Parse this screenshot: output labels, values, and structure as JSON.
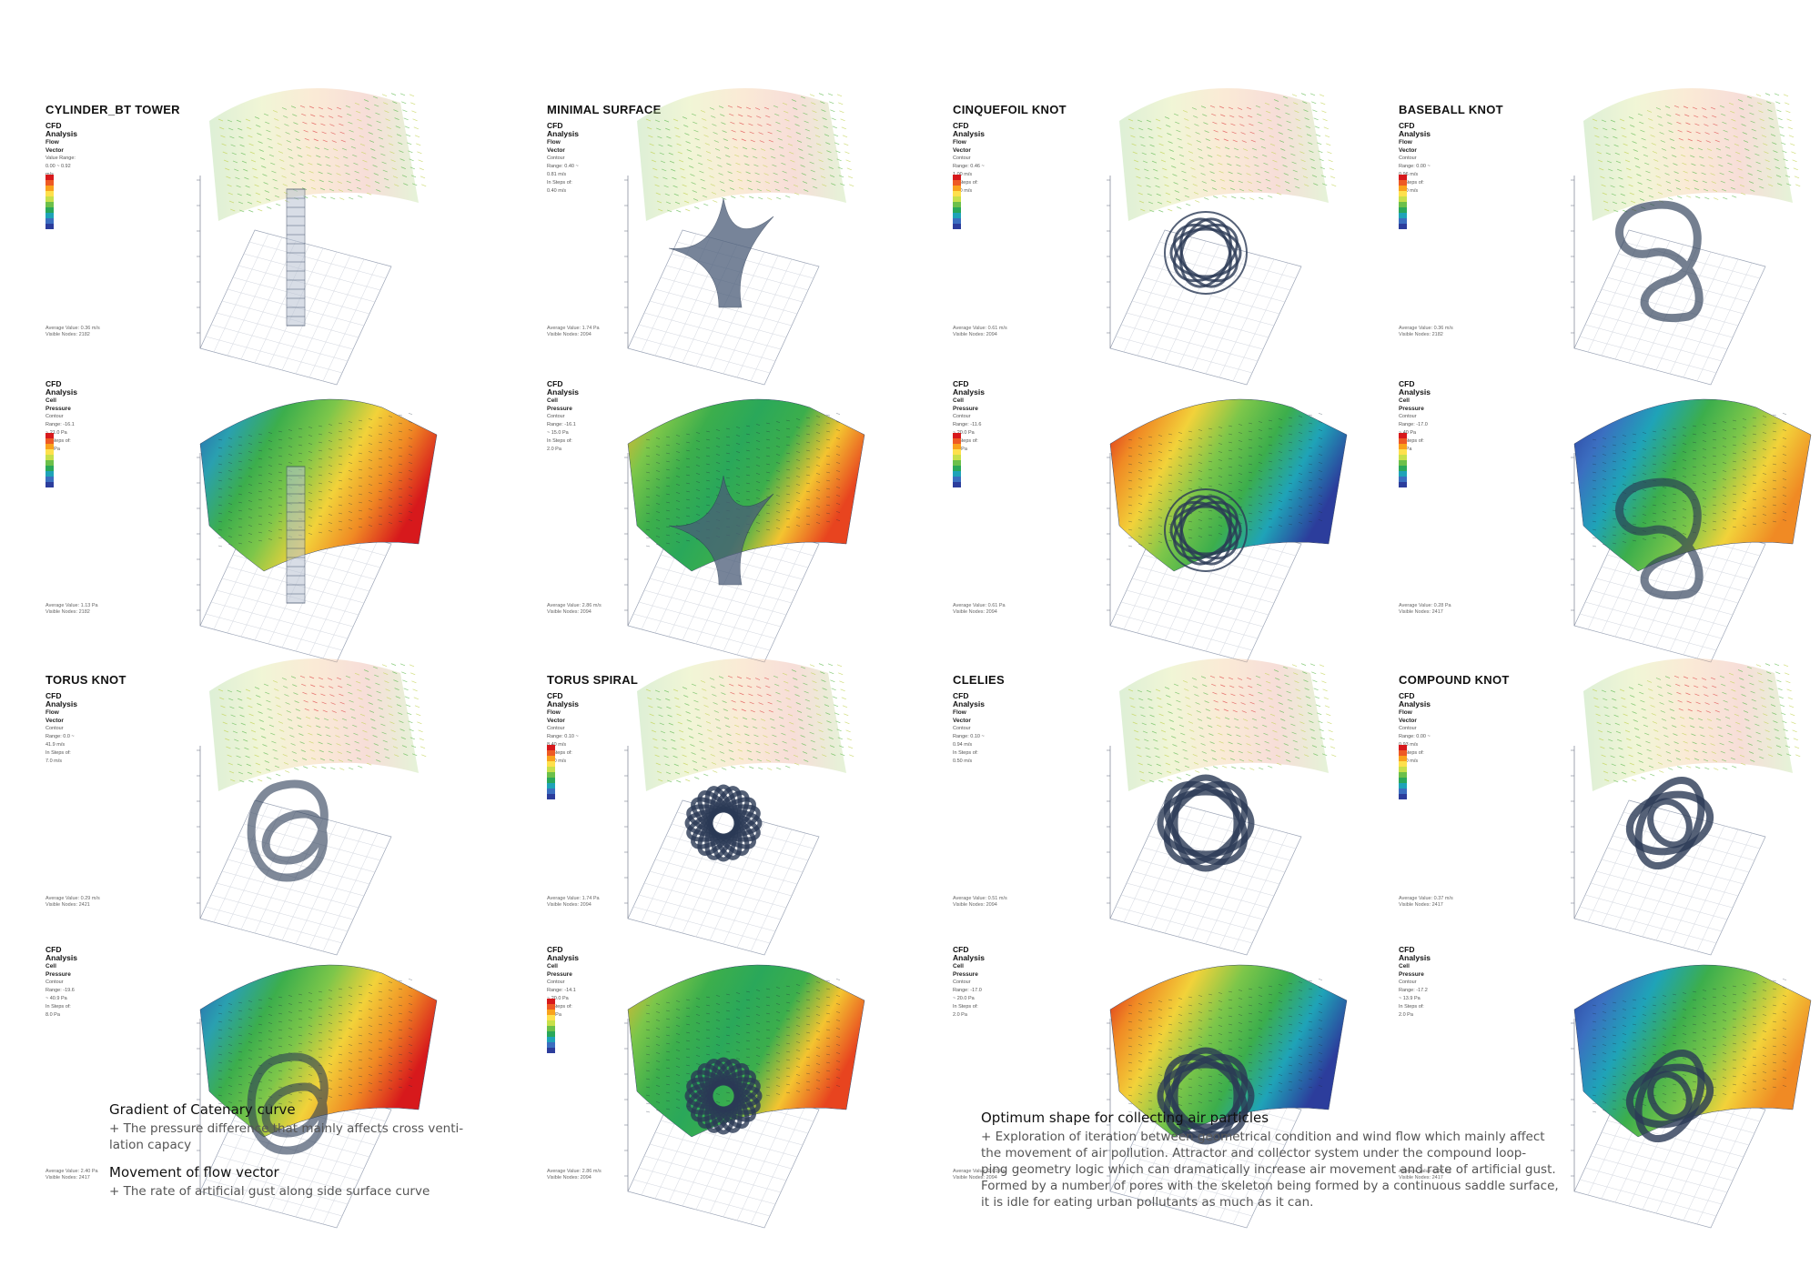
{
  "panels": [
    {
      "title": "CYLINDER_BT TOWER",
      "legend": {
        "title": "CFD Analysis",
        "sub": "Flow Vector",
        "l1": "Value Range: 0.00 ~ 0.92 m/s",
        "l2": "",
        "l3": ""
      },
      "stat": {
        "l1": "Average Value: 0.36 m/s",
        "l2": "Visible Nodes: 2182"
      }
    },
    {
      "title": "MINIMAL SURFACE",
      "legend": {
        "title": "CFD Analysis",
        "sub": "Flow Vector",
        "l1": "Contour Range: 0.40 ~ 0.81 m/s",
        "l2": "In Steps of: 0.40 m/s",
        "l3": ""
      },
      "stat": {
        "l1": "Average Value: 1.74 Pa",
        "l2": "Visible Nodes: 2094"
      }
    },
    {
      "title": "CINQUEFOIL KNOT",
      "legend": {
        "title": "CFD Analysis",
        "sub": "Flow Vector",
        "l1": "Contour Range: 0.46 ~ 1.00 m/s",
        "l2": "In Steps of: 0.40 m/s",
        "l3": ""
      },
      "stat": {
        "l1": "Average Value: 0.61 m/s",
        "l2": "Visible Nodes: 2094"
      }
    },
    {
      "title": "BASEBALL KNOT",
      "legend": {
        "title": "CFD Analysis",
        "sub": "Flow Vector",
        "l1": "Contour Range: 0.00 ~ 0.96 m/s",
        "l2": "In Steps of: 0.40 m/s",
        "l3": ""
      },
      "stat": {
        "l1": "Average Value: 0.36 m/s",
        "l2": "Visible Nodes: 2182"
      }
    },
    {
      "title": "",
      "legend": {
        "title": "CFD Analysis",
        "sub": "Cell Pressure",
        "l1": "Contour Range: -16.1 ~ 21.0 Pa",
        "l2": "In Steps of: 4.0 Pa",
        "l3": ""
      },
      "stat": {
        "l1": "Average Value: 1.13 Pa",
        "l2": "Visible Nodes: 2182"
      }
    },
    {
      "title": "",
      "legend": {
        "title": "CFD Analysis",
        "sub": "Cell Pressure",
        "l1": "Contour Range: -16.1 ~ 15.0 Pa",
        "l2": "In Steps of: 2.0 Pa",
        "l3": ""
      },
      "stat": {
        "l1": "Average Value: 2.86 m/s",
        "l2": "Visible Nodes: 2094"
      }
    },
    {
      "title": "",
      "legend": {
        "title": "CFD Analysis",
        "sub": "Cell Pressure",
        "l1": "Contour Range: -11.6 ~ 20.0 Pa",
        "l2": "In Steps of: 2.0 Pa",
        "l3": ""
      },
      "stat": {
        "l1": "Average Value: 0.61 Pa",
        "l2": "Visible Nodes: 2094"
      }
    },
    {
      "title": "",
      "legend": {
        "title": "CFD Analysis",
        "sub": "Cell Pressure",
        "l1": "Contour Range: -17.0 ~ 40 Pa",
        "l2": "In Steps of: 10 Pa",
        "l3": ""
      },
      "stat": {
        "l1": "Average Value: 0.28 Pa",
        "l2": "Visible Nodes: 2417"
      }
    },
    {
      "title": "TORUS KNOT",
      "legend": {
        "title": "CFD Analysis",
        "sub": "Flow Vector",
        "l1": "Contour Range: 0.0 ~ 41.9 m/s",
        "l2": "In Steps of: 7.0 m/s",
        "l3": ""
      },
      "stat": {
        "l1": "Average Value: 0.29 m/s",
        "l2": "Visible Nodes: 2421"
      }
    },
    {
      "title": "TORUS SPIRAL",
      "legend": {
        "title": "CFD Analysis",
        "sub": "Flow Vector",
        "l1": "Contour Range: 0.10 ~ 8.40 m/s",
        "l2": "In Steps of: 1.00 m/s",
        "l3": ""
      },
      "stat": {
        "l1": "Average Value: 1.74 Pa",
        "l2": "Visible Nodes: 2094"
      }
    },
    {
      "title": "CLELIES",
      "legend": {
        "title": "CFD Analysis",
        "sub": "Flow Vector",
        "l1": "Contour Range: 0.10 ~ 0.94 m/s",
        "l2": "In Steps of: 0.50 m/s",
        "l3": ""
      },
      "stat": {
        "l1": "Average Value: 0.51 m/s",
        "l2": "Visible Nodes: 2094"
      }
    },
    {
      "title": "COMPOUND KNOT",
      "legend": {
        "title": "CFD Analysis",
        "sub": "Flow Vector",
        "l1": "Contour Range: 0.00 ~ 0.93 m/s",
        "l2": "In Steps of: 0.40 m/s",
        "l3": ""
      },
      "stat": {
        "l1": "Average Value: 0.37 m/s",
        "l2": "Visible Nodes: 2417"
      }
    },
    {
      "title": "",
      "legend": {
        "title": "CFD Analysis",
        "sub": "Cell Pressure",
        "l1": "Contour Range: -19.6 ~ 40.9 Pa",
        "l2": "In Steps of: 8.0 Pa",
        "l3": ""
      },
      "stat": {
        "l1": "Average Value: 2.40 Pa",
        "l2": "Visible Nodes: 2417"
      }
    },
    {
      "title": "",
      "legend": {
        "title": "CFD Analysis",
        "sub": "Cell Pressure",
        "l1": "Contour Range: -14.1 ~ 20.0 Pa",
        "l2": "In Steps of: 4.0 Pa",
        "l3": ""
      },
      "stat": {
        "l1": "Average Value: 2.86 m/s",
        "l2": "Visible Nodes: 2094"
      }
    },
    {
      "title": "",
      "legend": {
        "title": "CFD Analysis",
        "sub": "Cell Pressure",
        "l1": "Contour Range: -17.0 ~ 20.0 Pa",
        "l2": "In Steps of: 2.0 Pa",
        "l3": ""
      },
      "stat": {
        "l1": "Average Value: 2.61 Pa",
        "l2": "Visible Nodes: 2094"
      }
    },
    {
      "title": "",
      "legend": {
        "title": "CFD Analysis",
        "sub": "Cell Pressure",
        "l1": "Contour Range: -17.2 ~ 13.9 Pa",
        "l2": "In Steps of: 2.0 Pa",
        "l3": ""
      },
      "stat": {
        "l1": "Average Value: 0.37 Pa",
        "l2": "Visible Nodes: 2417"
      }
    }
  ],
  "colorbar_colors": [
    "#d7191c",
    "#ee5a24",
    "#f9a21c",
    "#fee04c",
    "#c8e04a",
    "#6cc04a",
    "#2aa85a",
    "#1fa3b8",
    "#3b6ec0",
    "#2c3d9c"
  ],
  "notes": {
    "left": {
      "h1": "Gradient of Catenary curve",
      "t1": "+ The pressure difference that mainly affects cross venti-\nlation capacy",
      "h2": "Movement of flow vector",
      "t2": "+ The rate of artificial gust along side surface curve"
    },
    "right": {
      "h1": "Optimum shape for collecting air particles",
      "t1": "+ Exploration of iteration between geometrical condition and wind flow which mainly affect\nthe movement of air pollution. Attractor and collector system under the compound loop-\nping geometry logic which can dramatically increase air movement and rate of artificial gust.\nFormed by a number of pores with the skeleton being formed by a continuous saddle surface,\nit is idle for eating urban pollutants as much as it can."
    }
  }
}
